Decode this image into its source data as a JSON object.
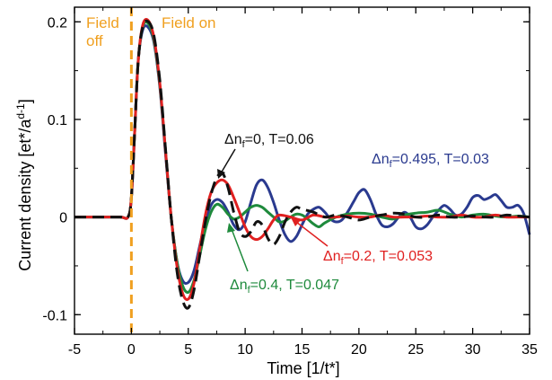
{
  "chart_data": {
    "type": "line",
    "xlabel": "Time [1/t*]",
    "ylabel": "Current density [et*/a",
    "ylabel_sup": "d-1",
    "ylabel_tail": "]",
    "xlim": [
      -5,
      35
    ],
    "ylim": [
      -0.12,
      0.215
    ],
    "xticks": [
      -5,
      0,
      5,
      10,
      15,
      20,
      25,
      30,
      35
    ],
    "xtick_labels": [
      "-5",
      "0",
      "5",
      "10",
      "15",
      "20",
      "25",
      "30",
      "35"
    ],
    "yticks": [
      -0.1,
      0,
      0.1,
      0.2
    ],
    "ytick_labels": [
      "-0.1",
      "0",
      "0.1",
      "0.2"
    ],
    "grid": false,
    "field_marker": {
      "x": 0,
      "color": "#f0a020",
      "left_label": [
        "Field",
        "off"
      ],
      "right_label": "Field on"
    },
    "series": [
      {
        "name": "Δnf=0, T=0.06",
        "label": {
          "pre": "Δn",
          "sub": "f",
          "post": "=0, T=0.06"
        },
        "color": "#111111",
        "dashed": true,
        "x": [
          -5,
          -3,
          -1,
          -0.3,
          0,
          0.3,
          0.6,
          1,
          1.5,
          2,
          2.5,
          3,
          3.5,
          4,
          4.5,
          5,
          5.5,
          6,
          6.5,
          7,
          7.5,
          8,
          8.5,
          9,
          9.5,
          10,
          10.5,
          11,
          11.5,
          12,
          12.5,
          13,
          13.5,
          14,
          14.5,
          15,
          16,
          17,
          18,
          19,
          20,
          21,
          22,
          23,
          24,
          25,
          26,
          27,
          28,
          29,
          30,
          31,
          32,
          33,
          34,
          35
        ],
        "y": [
          0,
          0,
          0,
          0,
          0.02,
          0.09,
          0.16,
          0.195,
          0.2,
          0.185,
          0.14,
          0.07,
          0,
          -0.055,
          -0.085,
          -0.093,
          -0.075,
          -0.04,
          -0.005,
          0.023,
          0.04,
          0.045,
          0.03,
          0.005,
          -0.015,
          -0.02,
          -0.015,
          -0.005,
          -0.008,
          -0.022,
          -0.028,
          -0.02,
          -0.005,
          0.005,
          0.01,
          0.008,
          0.005,
          0,
          0.002,
          0,
          -0.003,
          0,
          0.002,
          0.004,
          0.003,
          0,
          0,
          0.002,
          0,
          0,
          0.001,
          0,
          0,
          0.002,
          0.001,
          0
        ]
      },
      {
        "name": "Δnf=0.2, T=0.053",
        "label": {
          "pre": "Δn",
          "sub": "f",
          "post": "=0.2, T=0.053"
        },
        "color": "#e02020",
        "dashed": false,
        "x": [
          -5,
          -3,
          -1,
          -0.3,
          0,
          0.3,
          0.6,
          1,
          1.5,
          2,
          2.5,
          3,
          3.5,
          4,
          4.5,
          5,
          5.5,
          6,
          6.5,
          7,
          7.5,
          8,
          8.5,
          9,
          9.5,
          10,
          10.5,
          11,
          11.5,
          12,
          12.5,
          13,
          14,
          15,
          16,
          17,
          18,
          19,
          20,
          21,
          22,
          23,
          24,
          25,
          26,
          27,
          28,
          29,
          30,
          31,
          32,
          33,
          34,
          35
        ],
        "y": [
          0,
          0,
          0,
          0,
          0.02,
          0.09,
          0.16,
          0.197,
          0.201,
          0.183,
          0.137,
          0.068,
          0,
          -0.05,
          -0.078,
          -0.084,
          -0.068,
          -0.033,
          0.002,
          0.025,
          0.035,
          0.038,
          0.033,
          0.02,
          0.005,
          -0.01,
          -0.02,
          -0.023,
          -0.02,
          -0.012,
          -0.003,
          0.002,
          0,
          -0.003,
          0.002,
          0,
          0,
          0.001,
          0,
          0,
          0.002,
          0,
          0,
          0,
          0.001,
          0,
          0,
          0.002,
          0,
          0,
          0.002,
          0,
          0,
          0
        ]
      },
      {
        "name": "Δnf=0.4, T=0.047",
        "label": {
          "pre": "Δn",
          "sub": "f",
          "post": "=0.4, T=0.047"
        },
        "color": "#1e8a3c",
        "dashed": false,
        "x": [
          -5,
          -3,
          -1,
          -0.3,
          0,
          0.3,
          0.6,
          1,
          1.5,
          2,
          2.5,
          3,
          3.5,
          4,
          4.5,
          5,
          5.5,
          6,
          6.5,
          7,
          7.5,
          8,
          8.5,
          9,
          9.5,
          10,
          10.5,
          11,
          11.5,
          12,
          12.5,
          13,
          13.5,
          14,
          14.5,
          15,
          15.5,
          16,
          16.5,
          17,
          18,
          19,
          20,
          21,
          22,
          23,
          24,
          25,
          26,
          27,
          28,
          29,
          30,
          31,
          32,
          33,
          34,
          35
        ],
        "y": [
          0,
          0,
          0,
          0,
          0.02,
          0.09,
          0.16,
          0.195,
          0.198,
          0.18,
          0.135,
          0.068,
          0,
          -0.045,
          -0.07,
          -0.077,
          -0.065,
          -0.04,
          -0.013,
          0.005,
          0.013,
          0.01,
          0.003,
          -0.002,
          0,
          0.005,
          0.01,
          0.012,
          0.01,
          0.005,
          0,
          -0.005,
          -0.004,
          0,
          0.003,
          0.002,
          -0.002,
          -0.007,
          -0.01,
          -0.006,
          0,
          0.003,
          0.004,
          0.003,
          0,
          -0.002,
          0.002,
          0.004,
          0.005,
          0.007,
          0.003,
          0,
          0.002,
          0.003,
          0.001,
          0,
          0.001,
          0
        ]
      },
      {
        "name": "Δnf=0.495, T=0.03",
        "label": {
          "pre": "Δn",
          "sub": "f",
          "post": "=0.495, T=0.03"
        },
        "color": "#2a3a8f",
        "dashed": false,
        "x": [
          -5,
          -3,
          -1,
          -0.3,
          0,
          0.3,
          0.6,
          1,
          1.5,
          2,
          2.5,
          3,
          3.5,
          4,
          4.5,
          5,
          5.5,
          6,
          6.5,
          7,
          7.5,
          8,
          8.5,
          9,
          9.5,
          10,
          10.5,
          11,
          11.5,
          12,
          12.5,
          13,
          13.5,
          14,
          14.5,
          15,
          15.5,
          16,
          16.5,
          17,
          17.5,
          18,
          18.5,
          19,
          19.5,
          20,
          20.5,
          21,
          21.5,
          22,
          22.5,
          23,
          23.5,
          24,
          24.5,
          25,
          25.5,
          26,
          26.5,
          27,
          27.5,
          28,
          28.5,
          29,
          29.5,
          30,
          30.5,
          31,
          31.5,
          32,
          32.5,
          33,
          33.5,
          34,
          34.5,
          35
        ],
        "y": [
          0,
          0,
          0,
          0,
          0.02,
          0.09,
          0.16,
          0.192,
          0.194,
          0.178,
          0.133,
          0.065,
          0,
          -0.045,
          -0.065,
          -0.067,
          -0.055,
          -0.03,
          -0.005,
          0.012,
          0.018,
          0.015,
          0.005,
          -0.008,
          -0.013,
          -0.005,
          0.015,
          0.033,
          0.038,
          0.03,
          0.015,
          -0.003,
          -0.018,
          -0.025,
          -0.02,
          -0.008,
          0.003,
          0.008,
          0.01,
          0.005,
          -0.002,
          -0.005,
          -0.003,
          0.005,
          0.015,
          0.025,
          0.028,
          0.018,
          0.003,
          -0.008,
          -0.01,
          -0.007,
          0,
          0.005,
          0,
          -0.01,
          -0.012,
          -0.008,
          0,
          0.007,
          0.012,
          0.008,
          0.002,
          0.003,
          0.01,
          0.02,
          0.022,
          0.018,
          0.02,
          0.023,
          0.017,
          0.01,
          0.01,
          0.012,
          0.003,
          -0.018
        ]
      }
    ]
  }
}
